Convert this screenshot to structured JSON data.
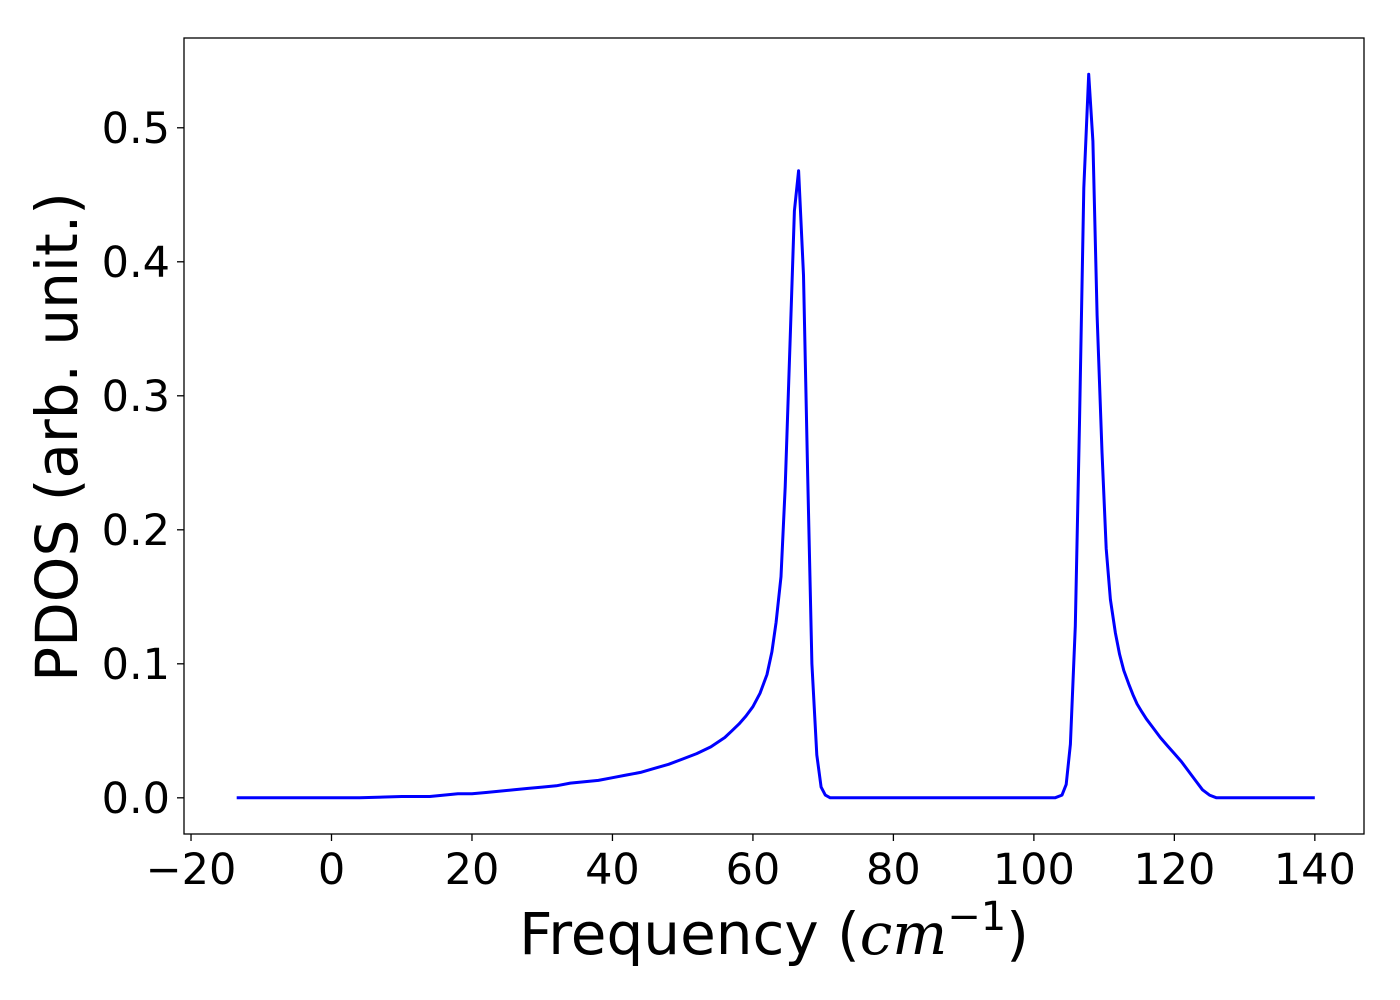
{
  "chart_data": {
    "type": "line",
    "title": "",
    "xlabel": {
      "prefix": "Frequency (",
      "unit_base": "cm",
      "unit_exp": "−1",
      "suffix": ")"
    },
    "ylabel": "PDOS (arb. unit.)",
    "xlim": [
      -21,
      147
    ],
    "ylim": [
      -0.027,
      0.567
    ],
    "xticks": [
      -20,
      0,
      20,
      40,
      60,
      80,
      100,
      120,
      140
    ],
    "xtick_labels": [
      "−20",
      "0",
      "20",
      "40",
      "60",
      "80",
      "100",
      "120",
      "140"
    ],
    "yticks": [
      0.0,
      0.1,
      0.2,
      0.3,
      0.4,
      0.5
    ],
    "ytick_labels": [
      "0.0",
      "0.1",
      "0.2",
      "0.3",
      "0.4",
      "0.5"
    ],
    "grid": false,
    "legend": "none",
    "series": [
      {
        "color": "#0000ff",
        "x": [
          -13.5,
          0,
          4,
          10,
          14,
          16,
          18,
          20,
          22,
          24,
          26,
          28,
          30,
          32,
          34,
          36,
          38,
          40,
          42,
          44,
          46,
          48,
          50,
          52,
          54,
          56,
          57,
          58,
          59,
          60,
          61,
          62,
          62.7,
          63.3,
          64,
          64.6,
          65.3,
          65.9,
          66.5,
          67.2,
          67.8,
          68.4,
          69.1,
          69.7,
          70.3,
          71,
          72,
          80,
          90,
          100,
          103,
          104,
          104.6,
          105.2,
          105.9,
          106.5,
          107.1,
          107.8,
          108.4,
          109,
          109.7,
          110.3,
          110.9,
          111.6,
          112.2,
          112.8,
          113.5,
          114.1,
          114.7,
          115.4,
          116,
          117,
          118,
          119,
          120,
          121,
          122,
          123,
          124,
          125,
          126,
          127,
          127.7,
          128.3,
          129,
          129.6,
          130.2,
          131,
          135,
          140
        ],
        "y": [
          0.0,
          0.0,
          0.0,
          0.001,
          0.001,
          0.002,
          0.003,
          0.003,
          0.004,
          0.005,
          0.006,
          0.007,
          0.008,
          0.009,
          0.011,
          0.012,
          0.013,
          0.015,
          0.017,
          0.019,
          0.022,
          0.025,
          0.029,
          0.033,
          0.038,
          0.045,
          0.05,
          0.055,
          0.061,
          0.068,
          0.078,
          0.092,
          0.109,
          0.131,
          0.165,
          0.232,
          0.343,
          0.438,
          0.468,
          0.39,
          0.24,
          0.1,
          0.032,
          0.008,
          0.002,
          0.0,
          0.0,
          0.0,
          0.0,
          0.0,
          0.0,
          0.002,
          0.01,
          0.04,
          0.128,
          0.28,
          0.455,
          0.54,
          0.49,
          0.36,
          0.258,
          0.186,
          0.148,
          0.123,
          0.107,
          0.095,
          0.085,
          0.077,
          0.07,
          0.064,
          0.059,
          0.052,
          0.045,
          0.039,
          0.033,
          0.027,
          0.02,
          0.013,
          0.006,
          0.002,
          0.0,
          0.0,
          0.0,
          0.0,
          0.0,
          0.0,
          0.0,
          0.0,
          0.0,
          0.0
        ]
      }
    ]
  }
}
